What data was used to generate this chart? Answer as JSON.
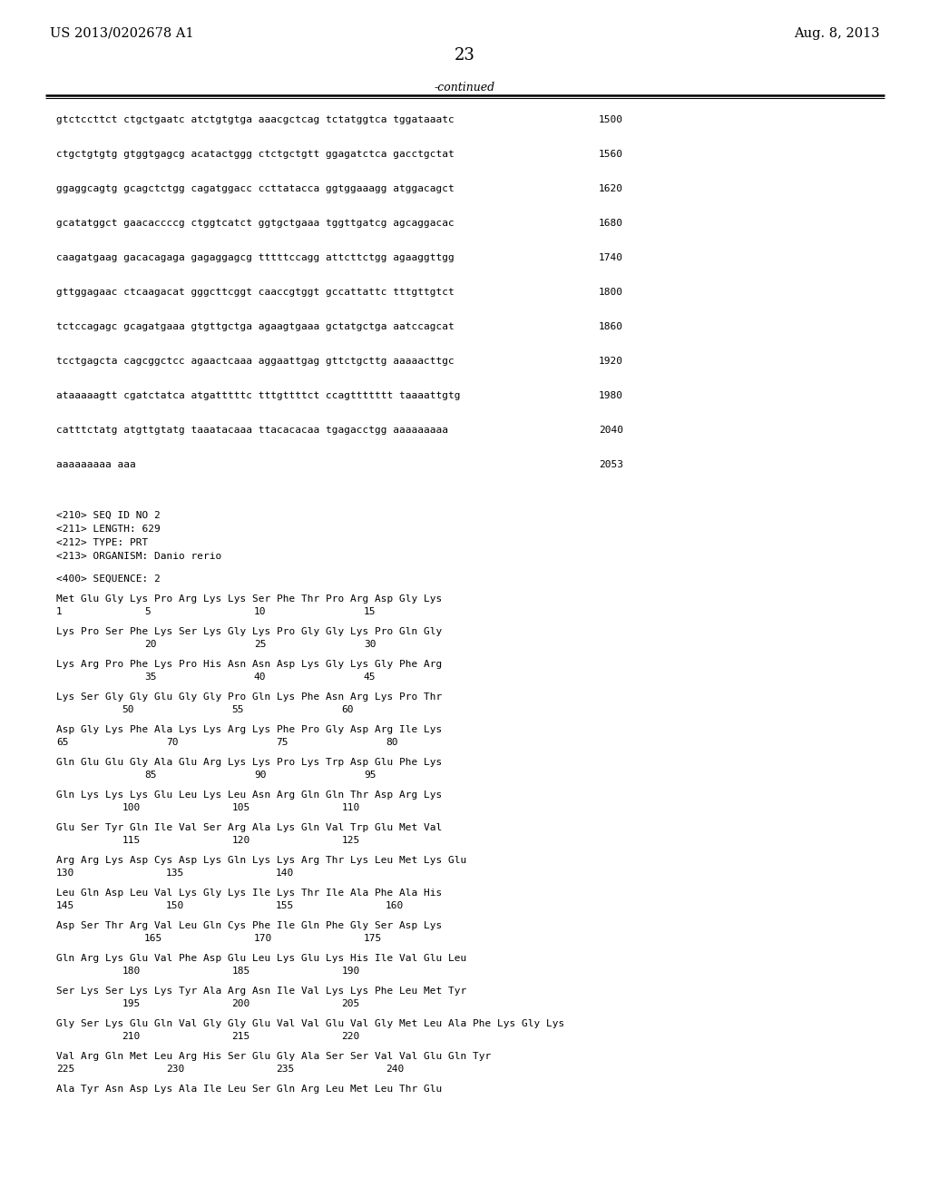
{
  "background_color": "#ffffff",
  "header_left": "US 2013/0202678 A1",
  "header_right": "Aug. 8, 2013",
  "page_number": "23",
  "continued_label": "-continued",
  "dna_lines": [
    [
      "gtctccttct ctgctgaatc atctgtgtga aaacgctcag tctatggtca tggataaatc",
      "1500"
    ],
    [
      "ctgctgtgtg gtggtgagcg acatactggg ctctgctgtt ggagatctca gacctgctat",
      "1560"
    ],
    [
      "ggaggcagtg gcagctctgg cagatggacc ccttatacca ggtggaaagg atggacagct",
      "1620"
    ],
    [
      "gcatatggct gaacaccccg ctggtcatct ggtgctgaaa tggttgatcg agcaggacac",
      "1680"
    ],
    [
      "caagatgaag gacacagaga gagaggagcg tttttccagg attcttctgg agaaggttgg",
      "1740"
    ],
    [
      "gttggagaac ctcaagacat gggcttcggt caaccgtggt gccattattc tttgttgtct",
      "1800"
    ],
    [
      "tctccagagc gcagatgaaa gtgttgctga agaagtgaaa gctatgctga aatccagcat",
      "1860"
    ],
    [
      "tcctgagcta cagcggctcc agaactcaaa aggaattgag gttctgcttg aaaaacttgc",
      "1920"
    ],
    [
      "ataaaaagtt cgatctatca atgatttttc tttgttttct ccagttttttt taaaattgtg",
      "1980"
    ],
    [
      "catttctatg atgttgtatg taaatacaaa ttacacacaa tgagacctgg aaaaaaaaa",
      "2040"
    ],
    [
      "aaaaaaaaa aaa",
      "2053"
    ]
  ],
  "seq_header": [
    "<210> SEQ ID NO 2",
    "<211> LENGTH: 629",
    "<212> TYPE: PRT",
    "<213> ORGANISM: Danio rerio"
  ],
  "seq400": "<400> SEQUENCE: 2",
  "protein_data": [
    {
      "seq": "Met Glu Gly Lys Pro Arg Lys Lys Ser Phe Thr Pro Arg Asp Gly Lys",
      "nums": [
        [
          "1",
          0
        ],
        [
          "5",
          4
        ],
        [
          "10",
          9
        ],
        [
          "15",
          14
        ]
      ]
    },
    {
      "seq": "Lys Pro Ser Phe Lys Ser Lys Gly Lys Pro Gly Gly Lys Pro Gln Gly",
      "nums": [
        [
          "20",
          4
        ],
        [
          "25",
          9
        ],
        [
          "30",
          14
        ]
      ]
    },
    {
      "seq": "Lys Arg Pro Phe Lys Pro His Asn Asn Asp Lys Gly Lys Gly Phe Arg",
      "nums": [
        [
          "35",
          4
        ],
        [
          "40",
          9
        ],
        [
          "45",
          14
        ]
      ]
    },
    {
      "seq": "Lys Ser Gly Gly Glu Gly Gly Pro Gln Lys Phe Asn Arg Lys Pro Thr",
      "nums": [
        [
          "50",
          3
        ],
        [
          "55",
          8
        ],
        [
          "60",
          13
        ]
      ]
    },
    {
      "seq": "Asp Gly Lys Phe Ala Lys Lys Arg Lys Phe Pro Gly Asp Arg Ile Lys",
      "nums": [
        [
          "65",
          0
        ],
        [
          "70",
          5
        ],
        [
          "75",
          10
        ],
        [
          "80",
          15
        ]
      ]
    },
    {
      "seq": "Gln Glu Glu Gly Ala Glu Arg Lys Lys Pro Lys Trp Asp Glu Phe Lys",
      "nums": [
        [
          "85",
          4
        ],
        [
          "90",
          9
        ],
        [
          "95",
          14
        ]
      ]
    },
    {
      "seq": "Gln Lys Lys Lys Glu Leu Lys Leu Asn Arg Gln Gln Thr Asp Arg Lys",
      "nums": [
        [
          "100",
          3
        ],
        [
          "105",
          8
        ],
        [
          "110",
          13
        ]
      ]
    },
    {
      "seq": "Glu Ser Tyr Gln Ile Val Ser Arg Ala Lys Gln Val Trp Glu Met Val",
      "nums": [
        [
          "115",
          3
        ],
        [
          "120",
          8
        ],
        [
          "125",
          13
        ]
      ]
    },
    {
      "seq": "Arg Arg Lys Asp Cys Asp Lys Gln Lys Lys Arg Thr Lys Leu Met Lys Glu",
      "nums": [
        [
          "130",
          0
        ],
        [
          "135",
          5
        ],
        [
          "140",
          10
        ]
      ]
    },
    {
      "seq": "Leu Gln Asp Leu Val Lys Gly Lys Ile Lys Thr Ile Ala Phe Ala His",
      "nums": [
        [
          "145",
          0
        ],
        [
          "150",
          5
        ],
        [
          "155",
          10
        ],
        [
          "160",
          15
        ]
      ]
    },
    {
      "seq": "Asp Ser Thr Arg Val Leu Gln Cys Phe Ile Gln Phe Gly Ser Asp Lys",
      "nums": [
        [
          "165",
          4
        ],
        [
          "170",
          9
        ],
        [
          "175",
          14
        ]
      ]
    },
    {
      "seq": "Gln Arg Lys Glu Val Phe Asp Glu Leu Lys Glu Lys His Ile Val Glu Leu",
      "nums": [
        [
          "180",
          3
        ],
        [
          "185",
          8
        ],
        [
          "190",
          13
        ]
      ]
    },
    {
      "seq": "Ser Lys Ser Lys Lys Tyr Ala Arg Asn Ile Val Lys Lys Phe Leu Met Tyr",
      "nums": [
        [
          "195",
          3
        ],
        [
          "200",
          8
        ],
        [
          "205",
          13
        ]
      ]
    },
    {
      "seq": "Gly Ser Lys Glu Gln Val Gly Gly Glu Val Val Glu Val Gly Met Leu Ala Phe Lys Gly Lys",
      "nums": [
        [
          "210",
          3
        ],
        [
          "215",
          8
        ],
        [
          "220",
          13
        ]
      ]
    },
    {
      "seq": "Val Arg Gln Met Leu Arg His Ser Glu Gly Ala Ser Ser Val Val Glu Gln Tyr",
      "nums": [
        [
          "225",
          0
        ],
        [
          "230",
          5
        ],
        [
          "235",
          10
        ],
        [
          "240",
          15
        ]
      ]
    },
    {
      "seq": "Ala Tyr Asn Asp Lys Ala Ile Leu Ser Gln Arg Leu Met Leu Thr Glu",
      "nums": []
    }
  ]
}
